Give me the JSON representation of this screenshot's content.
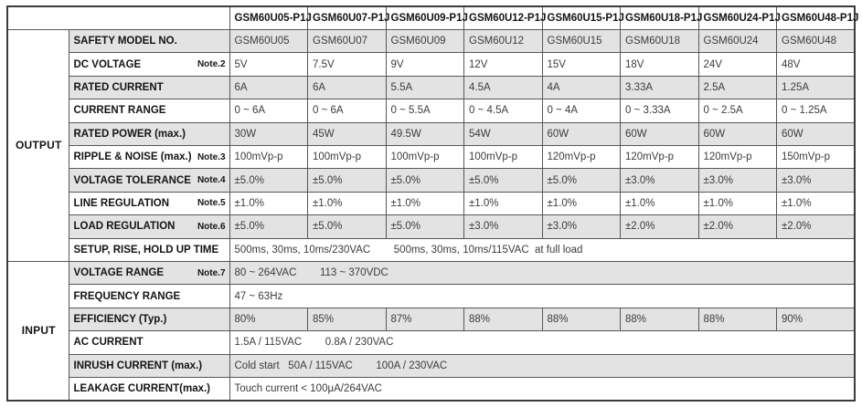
{
  "colors": {
    "stripe": "#e3e3e3",
    "border": "#56575a",
    "frame": "#3a3a3c",
    "label_text": "#141414",
    "value_text": "#3c3c3c",
    "page_bg": "#ffffff"
  },
  "header": {
    "models": [
      "GSM60U05-P1J",
      "GSM60U07-P1J",
      "GSM60U09-P1J",
      "GSM60U12-P1J",
      "GSM60U15-P1J",
      "GSM60U18-P1J",
      "GSM60U24-P1J",
      "GSM60U48-P1J"
    ]
  },
  "sections": {
    "output_label": "OUTPUT",
    "input_label": "INPUT"
  },
  "rows": {
    "safety": {
      "label": "SAFETY MODEL NO.",
      "cells": [
        "GSM60U05",
        "GSM60U07",
        "GSM60U09",
        "GSM60U12",
        "GSM60U15",
        "GSM60U18",
        "GSM60U24",
        "GSM60U48"
      ]
    },
    "dc_voltage": {
      "label": "DC VOLTAGE",
      "note": "Note.2",
      "cells": [
        "5V",
        "7.5V",
        "9V",
        "12V",
        "15V",
        "18V",
        "24V",
        "48V"
      ]
    },
    "rated_current": {
      "label": "RATED CURRENT",
      "cells": [
        "6A",
        "6A",
        "5.5A",
        "4.5A",
        "4A",
        "3.33A",
        "2.5A",
        "1.25A"
      ]
    },
    "current_range": {
      "label": "CURRENT RANGE",
      "cells": [
        "0 ~ 6A",
        "0 ~ 6A",
        "0 ~ 5.5A",
        "0 ~ 4.5A",
        "0 ~ 4A",
        "0 ~ 3.33A",
        "0 ~ 2.5A",
        "0 ~ 1.25A"
      ]
    },
    "rated_power": {
      "label": "RATED POWER (max.)",
      "cells": [
        "30W",
        "45W",
        "49.5W",
        "54W",
        "60W",
        "60W",
        "60W",
        "60W"
      ]
    },
    "ripple": {
      "label": "RIPPLE & NOISE (max.)",
      "note": "Note.3",
      "cells": [
        "100mVp-p",
        "100mVp-p",
        "100mVp-p",
        "100mVp-p",
        "120mVp-p",
        "120mVp-p",
        "120mVp-p",
        "150mVp-p"
      ]
    },
    "v_tolerance": {
      "label": "VOLTAGE TOLERANCE",
      "note": "Note.4",
      "cells": [
        "±5.0%",
        "±5.0%",
        "±5.0%",
        "±5.0%",
        "±5.0%",
        "±3.0%",
        "±3.0%",
        "±3.0%"
      ]
    },
    "line_reg": {
      "label": "LINE REGULATION",
      "note": "Note.5",
      "cells": [
        "±1.0%",
        "±1.0%",
        "±1.0%",
        "±1.0%",
        "±1.0%",
        "±1.0%",
        "±1.0%",
        "±1.0%"
      ]
    },
    "load_reg": {
      "label": "LOAD REGULATION",
      "note": "Note.6",
      "cells": [
        "±5.0%",
        "±5.0%",
        "±5.0%",
        "±3.0%",
        "±3.0%",
        "±2.0%",
        "±2.0%",
        "±2.0%"
      ]
    },
    "setup": {
      "label": "SETUP, RISE, HOLD UP TIME",
      "span": "500ms, 30ms, 10ms/230VAC        500ms, 30ms, 10ms/115VAC  at full load"
    },
    "v_range": {
      "label": "VOLTAGE RANGE",
      "note": "Note.7",
      "span": "80 ~ 264VAC        113 ~ 370VDC"
    },
    "f_range": {
      "label": "FREQUENCY RANGE",
      "span": "47 ~ 63Hz"
    },
    "efficiency": {
      "label": "EFFICIENCY (Typ.)",
      "cells": [
        "80%",
        "85%",
        "87%",
        "88%",
        "88%",
        "88%",
        "88%",
        "90%"
      ]
    },
    "ac_current": {
      "label": "AC CURRENT",
      "span": "1.5A / 115VAC        0.8A / 230VAC"
    },
    "inrush": {
      "label": "INRUSH CURRENT (max.)",
      "span": "Cold start   50A / 115VAC        100A / 230VAC"
    },
    "leakage": {
      "label": "LEAKAGE CURRENT(max.)",
      "span": "Touch current < 100μA/264VAC"
    }
  }
}
